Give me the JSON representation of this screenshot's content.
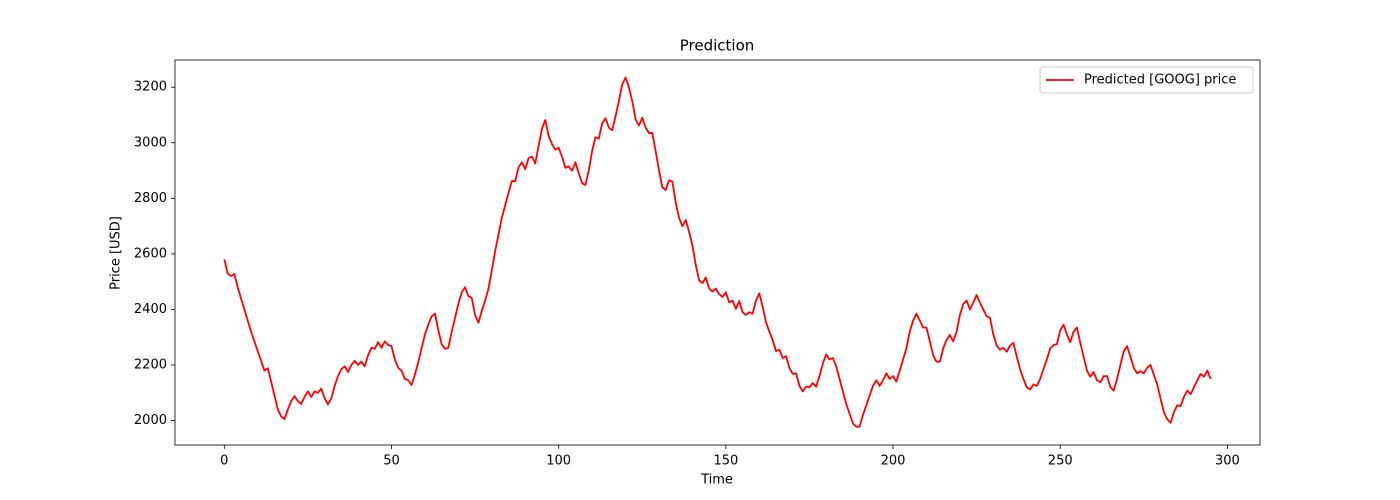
{
  "chart_data": {
    "type": "line",
    "title": "Prediction",
    "xlabel": "Time",
    "ylabel": "Price [USD]",
    "x": [
      0,
      1,
      2,
      3,
      4,
      5,
      6,
      7,
      8,
      9,
      10,
      11,
      12,
      13,
      14,
      15,
      16,
      17,
      18,
      19,
      20,
      21,
      22,
      23,
      24,
      25,
      26,
      27,
      28,
      29,
      30,
      31,
      32,
      33,
      34,
      35,
      36,
      37,
      38,
      39,
      40,
      41,
      42,
      43,
      44,
      45,
      46,
      47,
      48,
      49,
      50,
      51,
      52,
      53,
      54,
      55,
      56,
      57,
      58,
      59,
      60,
      61,
      62,
      63,
      64,
      65,
      66,
      67,
      68,
      69,
      70,
      71,
      72,
      73,
      74,
      75,
      76,
      77,
      78,
      79,
      80,
      81,
      82,
      83,
      84,
      85,
      86,
      87,
      88,
      89,
      90,
      91,
      92,
      93,
      94,
      95,
      96,
      97,
      98,
      99,
      100,
      101,
      102,
      103,
      104,
      105,
      106,
      107,
      108,
      109,
      110,
      111,
      112,
      113,
      114,
      115,
      116,
      117,
      118,
      119,
      120,
      121,
      122,
      123,
      124,
      125,
      126,
      127,
      128,
      129,
      130,
      131,
      132,
      133,
      134,
      135,
      136,
      137,
      138,
      139,
      140,
      141,
      142,
      143,
      144,
      145,
      146,
      147,
      148,
      149,
      150,
      151,
      152,
      153,
      154,
      155,
      156,
      157,
      158,
      159,
      160,
      161,
      162,
      163,
      164,
      165,
      166,
      167,
      168,
      169,
      170,
      171,
      172,
      173,
      174,
      175,
      176,
      177,
      178,
      179,
      180,
      181,
      182,
      183,
      184,
      185,
      186,
      187,
      188,
      189,
      190,
      191,
      192,
      193,
      194,
      195,
      196,
      197,
      198,
      199,
      200,
      201,
      202,
      203,
      204,
      205,
      206,
      207,
      208,
      209,
      210,
      211,
      212,
      213,
      214,
      215,
      216,
      217,
      218,
      219,
      220,
      221,
      222,
      223,
      224,
      225,
      226,
      227,
      228,
      229,
      230,
      231,
      232,
      233,
      234,
      235,
      236,
      237,
      238,
      239,
      240,
      241,
      242,
      243,
      244,
      245,
      246,
      247,
      248,
      249,
      250,
      251,
      252,
      253,
      254,
      255,
      256,
      257,
      258,
      259,
      260,
      261,
      262,
      263,
      264,
      265,
      266,
      267,
      268,
      269,
      270,
      271,
      272,
      273,
      274,
      275,
      276,
      277,
      278,
      279,
      280,
      281,
      282,
      283,
      284,
      285,
      286,
      287,
      288,
      289,
      290,
      291,
      292,
      293,
      294,
      295
    ],
    "series": [
      {
        "name": "Predicted [GOOG] price",
        "color": "#ff0000",
        "values": [
          2580,
          2530,
          2520,
          2528,
          2480,
          2440,
          2400,
          2360,
          2320,
          2285,
          2250,
          2215,
          2180,
          2188,
          2140,
          2090,
          2040,
          2015,
          2005,
          2040,
          2070,
          2088,
          2070,
          2060,
          2085,
          2105,
          2085,
          2105,
          2100,
          2115,
          2080,
          2058,
          2080,
          2125,
          2160,
          2185,
          2195,
          2175,
          2200,
          2215,
          2200,
          2212,
          2195,
          2235,
          2262,
          2258,
          2282,
          2262,
          2285,
          2272,
          2268,
          2220,
          2190,
          2180,
          2150,
          2145,
          2128,
          2165,
          2210,
          2260,
          2310,
          2345,
          2375,
          2385,
          2325,
          2275,
          2258,
          2262,
          2320,
          2370,
          2420,
          2462,
          2480,
          2448,
          2442,
          2380,
          2352,
          2395,
          2432,
          2475,
          2540,
          2610,
          2670,
          2730,
          2775,
          2820,
          2862,
          2862,
          2912,
          2930,
          2905,
          2945,
          2950,
          2925,
          2990,
          3050,
          3082,
          3025,
          2995,
          2975,
          2982,
          2950,
          2910,
          2915,
          2900,
          2930,
          2890,
          2855,
          2848,
          2900,
          2970,
          3020,
          3015,
          3070,
          3088,
          3055,
          3045,
          3095,
          3150,
          3210,
          3235,
          3200,
          3150,
          3085,
          3062,
          3090,
          3055,
          3035,
          3035,
          2970,
          2900,
          2840,
          2830,
          2865,
          2860,
          2785,
          2730,
          2700,
          2722,
          2680,
          2630,
          2560,
          2505,
          2495,
          2515,
          2475,
          2465,
          2475,
          2455,
          2445,
          2462,
          2425,
          2432,
          2402,
          2430,
          2390,
          2380,
          2390,
          2385,
          2432,
          2458,
          2410,
          2355,
          2320,
          2290,
          2250,
          2255,
          2225,
          2232,
          2190,
          2168,
          2170,
          2125,
          2105,
          2122,
          2120,
          2135,
          2122,
          2160,
          2205,
          2238,
          2220,
          2225,
          2195,
          2150,
          2105,
          2060,
          2025,
          1990,
          1978,
          1978,
          2020,
          2055,
          2090,
          2125,
          2145,
          2125,
          2145,
          2170,
          2150,
          2160,
          2140,
          2180,
          2220,
          2260,
          2320,
          2360,
          2385,
          2360,
          2335,
          2335,
          2285,
          2235,
          2212,
          2212,
          2260,
          2290,
          2308,
          2285,
          2320,
          2380,
          2420,
          2432,
          2400,
          2425,
          2452,
          2425,
          2400,
          2375,
          2370,
          2310,
          2270,
          2255,
          2262,
          2248,
          2270,
          2280,
          2230,
          2185,
          2150,
          2120,
          2112,
          2130,
          2125,
          2150,
          2185,
          2220,
          2260,
          2272,
          2275,
          2325,
          2345,
          2310,
          2282,
          2320,
          2335,
          2280,
          2230,
          2180,
          2158,
          2175,
          2145,
          2138,
          2160,
          2160,
          2120,
          2108,
          2150,
          2200,
          2250,
          2268,
          2230,
          2190,
          2170,
          2178,
          2170,
          2190,
          2200,
          2165,
          2130,
          2080,
          2030,
          2005,
          1992,
          2030,
          2055,
          2052,
          2085,
          2108,
          2095,
          2120,
          2145,
          2168,
          2158,
          2180,
          2150
        ]
      }
    ],
    "xlim": [
      -14.75,
      309.75
    ],
    "xticks": [
      0,
      50,
      100,
      150,
      200,
      250,
      300
    ],
    "ylim": [
      1912,
      3298
    ],
    "yticks": [
      2000,
      2200,
      2400,
      2600,
      2800,
      3000,
      3200
    ],
    "legend": "upper right"
  }
}
